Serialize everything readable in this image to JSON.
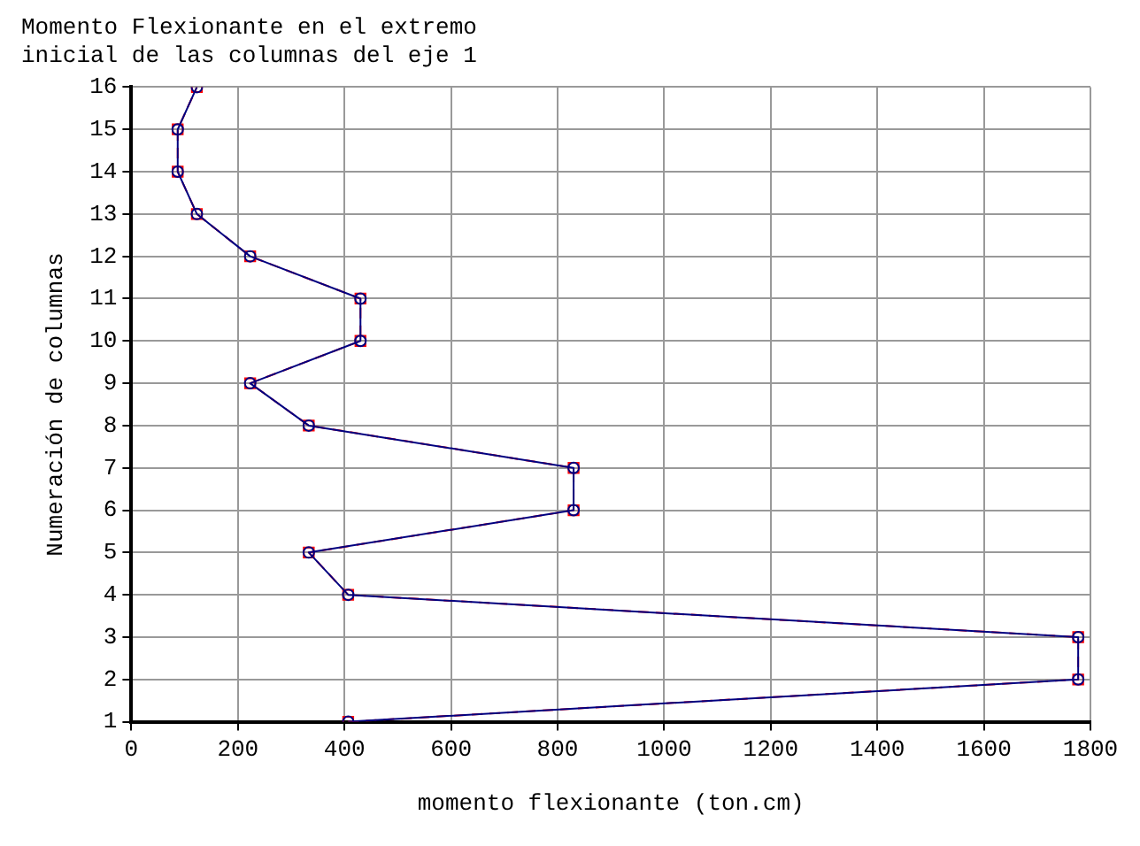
{
  "chart_data": {
    "type": "line",
    "title": "Momento Flexionante en el extremo\ninicial de las columnas del eje 1",
    "xlabel": "momento flexionante (ton.cm)",
    "ylabel": "Numeración de columnas",
    "series": [
      {
        "color": "#000080",
        "marker": "circle",
        "line_style": "solid",
        "x": [
          407,
          1777,
          1777,
          407,
          333,
          830,
          830,
          333,
          223,
          430,
          430,
          223,
          123,
          87,
          87,
          123
        ],
        "values": [
          1,
          2,
          3,
          4,
          5,
          6,
          7,
          8,
          9,
          10,
          11,
          12,
          13,
          14,
          15,
          16
        ]
      },
      {
        "color": "#ff0000",
        "marker": "square",
        "line_style": "dashed",
        "x": [
          407,
          1777,
          1777,
          407,
          333,
          830,
          830,
          333,
          223,
          430,
          430,
          223,
          123,
          87,
          87,
          123
        ],
        "values": [
          1,
          2,
          3,
          4,
          5,
          6,
          7,
          8,
          9,
          10,
          11,
          12,
          13,
          14,
          15,
          16
        ]
      }
    ],
    "xlim": [
      0,
      1800
    ],
    "xticks": [
      0,
      200,
      400,
      600,
      800,
      1000,
      1200,
      1400,
      1600,
      1800
    ],
    "ylim": [
      1,
      16
    ],
    "yticks": [
      1,
      2,
      3,
      4,
      5,
      6,
      7,
      8,
      9,
      10,
      11,
      12,
      13,
      14,
      15,
      16
    ],
    "grid": true,
    "legend": false
  }
}
